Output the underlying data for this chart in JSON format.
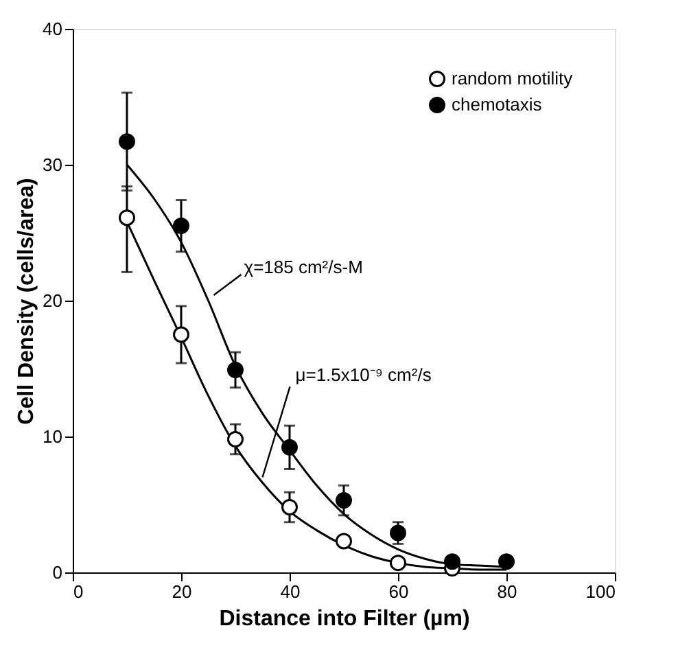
{
  "chart_data": {
    "type": "scatter",
    "xlabel": "Distance into Filter  (µm)",
    "ylabel": "Cell Density  (cells/area)",
    "xlim": [
      0,
      100
    ],
    "ylim": [
      0,
      40
    ],
    "xticks": [
      0,
      20,
      40,
      60,
      80,
      100
    ],
    "yticks": [
      0,
      10,
      20,
      30,
      40
    ],
    "grid": false,
    "legend": "top right",
    "marker": "circle",
    "line_style": "solid",
    "series": [
      {
        "name": "random motility",
        "color": "#ffffff",
        "x": [
          10,
          20,
          30,
          40,
          50,
          60,
          70
        ],
        "values": [
          26.1,
          17.5,
          9.8,
          4.8,
          2.3,
          0.7,
          0.3
        ],
        "errors": [
          [
            22.1,
            28.4
          ],
          2.1,
          1.1,
          1.1,
          null,
          null,
          null
        ]
      },
      {
        "name": "chemotaxis",
        "color": "#000000",
        "x": [
          10,
          20,
          30,
          40,
          50,
          60,
          70,
          80
        ],
        "values": [
          31.7,
          25.5,
          14.9,
          9.2,
          5.3,
          2.9,
          0.8,
          0.8
        ],
        "errors": [
          3.6,
          1.9,
          1.3,
          1.6,
          1.1,
          0.8,
          null,
          null
        ]
      },
      {
        "type": "line",
        "marker": "none",
        "color": "#000000",
        "x": [
          10,
          15,
          20,
          25,
          30,
          35,
          40,
          45,
          50,
          55,
          60,
          65,
          70,
          75,
          80
        ],
        "values": [
          25.8,
          21.5,
          17.3,
          13.0,
          9.3,
          6.6,
          4.5,
          3.1,
          2.0,
          1.2,
          0.7,
          0.4,
          0.3,
          0.2,
          0.2
        ]
      },
      {
        "type": "line",
        "marker": "none",
        "color": "#000000",
        "x": [
          10,
          15,
          20,
          25,
          30,
          35,
          40,
          45,
          50,
          55,
          60,
          65,
          70,
          75,
          80
        ],
        "values": [
          30.0,
          27.5,
          24.3,
          20.0,
          15.2,
          11.7,
          9.0,
          6.4,
          4.3,
          2.8,
          1.7,
          1.0,
          0.6,
          0.5,
          0.4
        ]
      }
    ],
    "annotations": [
      {
        "text": "χ=185 cm²/s-M",
        "x": 25,
        "y": 20.0
      },
      {
        "text": "μ=1.5x10⁻⁹ cm²/s",
        "x": 35,
        "y": 6.6
      }
    ]
  }
}
